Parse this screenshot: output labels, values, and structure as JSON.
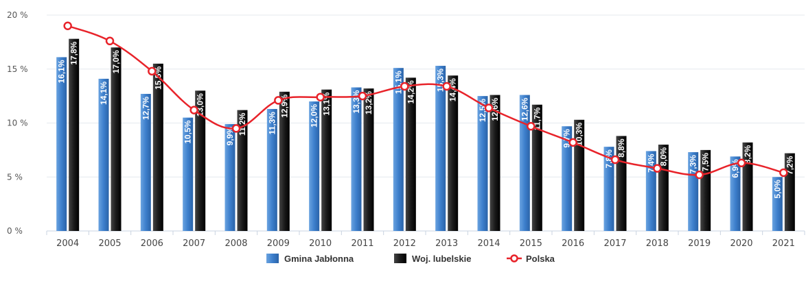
{
  "chart_data": {
    "type": "bar",
    "categories": [
      "2004",
      "2005",
      "2006",
      "2007",
      "2008",
      "2009",
      "2010",
      "2011",
      "2012",
      "2013",
      "2014",
      "2015",
      "2016",
      "2017",
      "2018",
      "2019",
      "2020",
      "2021"
    ],
    "series": [
      {
        "name": "Gmina Jabłonna",
        "kind": "bar",
        "color": "#3d7fcc",
        "values": [
          16.1,
          14.1,
          12.7,
          10.5,
          9.9,
          11.3,
          12.0,
          13.3,
          15.1,
          15.3,
          12.5,
          12.6,
          9.7,
          7.8,
          7.4,
          7.3,
          6.9,
          5.0
        ],
        "labels": [
          "16,1%",
          "14,1%",
          "12,7%",
          "10,5%",
          "9,9%",
          "11,3%",
          "12,0%",
          "13,3%",
          "15,1%",
          "15,3%",
          "12,5%",
          "12,6%",
          "9,7%",
          "7,8%",
          "7,4%",
          "7,3%",
          "6,9%",
          "5,0%"
        ]
      },
      {
        "name": "Woj. lubelskie",
        "kind": "bar",
        "color": "#1a1a1a",
        "values": [
          17.8,
          17.0,
          15.5,
          13.0,
          11.2,
          12.9,
          13.1,
          13.2,
          14.2,
          14.4,
          12.6,
          11.7,
          10.3,
          8.8,
          8.0,
          7.5,
          8.2,
          7.2
        ],
        "labels": [
          "17,8%",
          "17,0%",
          "15,5%",
          "13,0%",
          "11,2%",
          "12,9%",
          "13,1%",
          "13,2%",
          "14,2%",
          "14,4%",
          "12,6%",
          "11,7%",
          "10,3%",
          "8,8%",
          "8,0%",
          "7,5%",
          "8,2%",
          "7,2%"
        ]
      },
      {
        "name": "Polska",
        "kind": "line",
        "color": "#e8232a",
        "values": [
          19.0,
          17.6,
          14.8,
          11.2,
          9.5,
          12.1,
          12.4,
          12.5,
          13.4,
          13.4,
          11.4,
          9.7,
          8.2,
          6.6,
          5.8,
          5.2,
          6.3,
          5.4
        ]
      }
    ],
    "yticks": [
      "0 %",
      "5 %",
      "10 %",
      "15 %",
      "20 %"
    ],
    "ytick_values": [
      0,
      5,
      10,
      15,
      20
    ],
    "ylim": [
      0,
      20
    ],
    "grid": true,
    "legend_position": "bottom-center"
  }
}
